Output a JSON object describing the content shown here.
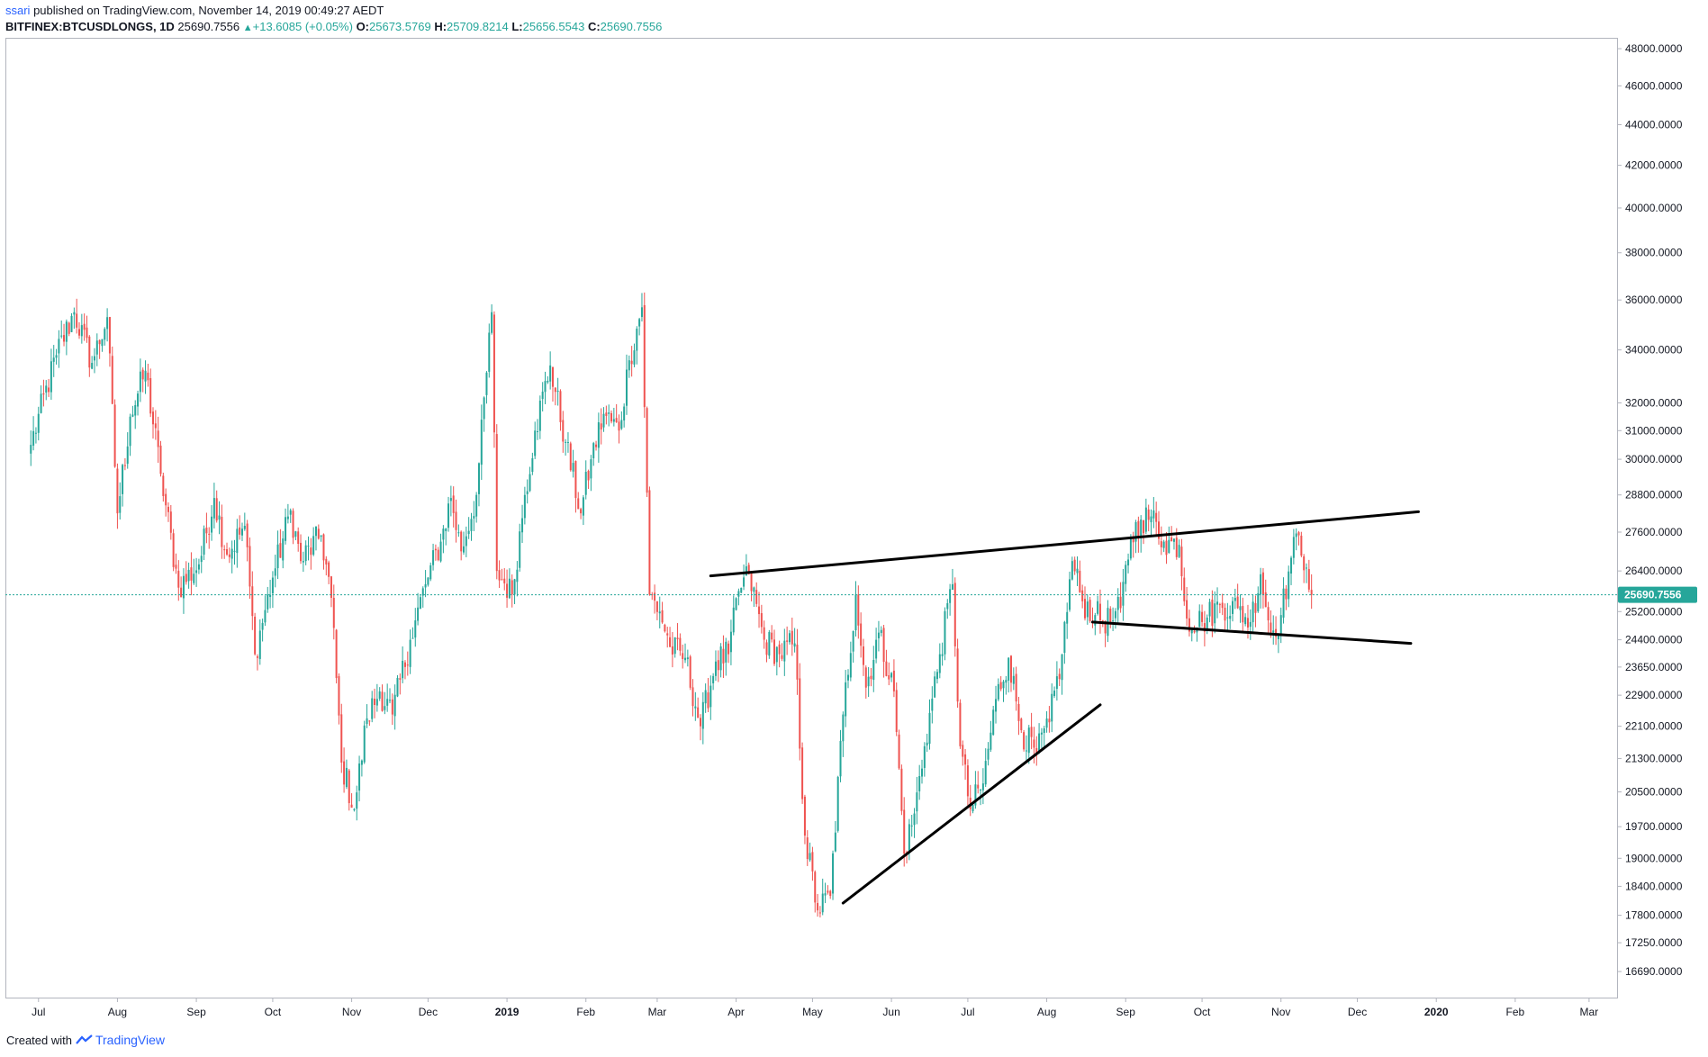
{
  "header": {
    "author": "ssari",
    "published_text": " published on TradingView.com, November 14, 2019 00:49:27 AEDT",
    "symbol": "BITFINEX:BTCUSDLONGS, 1D",
    "last": "25690.7556",
    "change": "+13.6085 (+0.05%)",
    "o_label": "O:",
    "o_value": "25673.5769",
    "h_label": "H:",
    "h_value": "25709.8214",
    "l_label": "L:",
    "l_value": "25656.5543",
    "c_label": "C:",
    "c_value": "25690.7556"
  },
  "footer": {
    "created_with": "Created with",
    "brand": "TradingView"
  },
  "colors": {
    "up": "#26a69a",
    "down": "#ef5350",
    "trendline": "#000000",
    "last_price_label": "#26a69a",
    "axis_text": "#131722"
  },
  "chart_data": {
    "type": "candlestick",
    "symbol": "BITFINEX:BTCUSDLONGS",
    "interval": "1D",
    "y_scale": "log",
    "ylim": [
      16200,
      48600
    ],
    "y_ticks": [
      "48000.0000",
      "46000.0000",
      "44000.0000",
      "42000.0000",
      "40000.0000",
      "38000.0000",
      "36000.0000",
      "34000.0000",
      "32000.0000",
      "31000.0000",
      "30000.0000",
      "28800.0000",
      "27600.0000",
      "26400.0000",
      "25200.0000",
      "24400.0000",
      "23650.0000",
      "22900.0000",
      "22100.0000",
      "21300.0000",
      "20500.0000",
      "19700.0000",
      "19000.0000",
      "18400.0000",
      "17800.0000",
      "17250.0000",
      "16690.0000"
    ],
    "x_ticks": [
      "Jul",
      "Aug",
      "Sep",
      "Oct",
      "Nov",
      "Dec",
      "2019",
      "Feb",
      "Mar",
      "Apr",
      "May",
      "Jun",
      "Jul",
      "Aug",
      "Sep",
      "Oct",
      "Nov",
      "Dec",
      "2020",
      "Feb",
      "Mar"
    ],
    "bold_x_ticks": [
      "2019",
      "2020"
    ],
    "last_price": 25690.7556,
    "last_price_label": "25690.7556",
    "price_path": [
      {
        "date": "2018-06-28",
        "close": 30500
      },
      {
        "date": "2018-07-08",
        "close": 33800
      },
      {
        "date": "2018-07-15",
        "close": 35500
      },
      {
        "date": "2018-07-22",
        "close": 33500
      },
      {
        "date": "2018-07-28",
        "close": 35300
      },
      {
        "date": "2018-08-01",
        "close": 28200
      },
      {
        "date": "2018-08-06",
        "close": 31500
      },
      {
        "date": "2018-08-12",
        "close": 33200
      },
      {
        "date": "2018-08-18",
        "close": 29500
      },
      {
        "date": "2018-08-25",
        "close": 25900
      },
      {
        "date": "2018-09-02",
        "close": 26600
      },
      {
        "date": "2018-09-08",
        "close": 28700
      },
      {
        "date": "2018-09-13",
        "close": 26900
      },
      {
        "date": "2018-09-20",
        "close": 27800
      },
      {
        "date": "2018-09-24",
        "close": 24000
      },
      {
        "date": "2018-10-01",
        "close": 26200
      },
      {
        "date": "2018-10-08",
        "close": 28300
      },
      {
        "date": "2018-10-12",
        "close": 26700
      },
      {
        "date": "2018-10-20",
        "close": 27500
      },
      {
        "date": "2018-10-24",
        "close": 25600
      },
      {
        "date": "2018-10-28",
        "close": 21200
      },
      {
        "date": "2018-11-02",
        "close": 20100
      },
      {
        "date": "2018-11-07",
        "close": 22300
      },
      {
        "date": "2018-11-12",
        "close": 23000
      },
      {
        "date": "2018-11-17",
        "close": 22400
      },
      {
        "date": "2018-11-24",
        "close": 24400
      },
      {
        "date": "2018-11-30",
        "close": 26000
      },
      {
        "date": "2018-12-06",
        "close": 27300
      },
      {
        "date": "2018-12-10",
        "close": 28700
      },
      {
        "date": "2018-12-14",
        "close": 27000
      },
      {
        "date": "2018-12-20",
        "close": 28800
      },
      {
        "date": "2018-12-26",
        "close": 35500
      },
      {
        "date": "2018-12-28",
        "close": 26400
      },
      {
        "date": "2019-01-03",
        "close": 25700
      },
      {
        "date": "2019-01-08",
        "close": 28800
      },
      {
        "date": "2019-01-12",
        "close": 31000
      },
      {
        "date": "2019-01-18",
        "close": 33400
      },
      {
        "date": "2019-01-24",
        "close": 30600
      },
      {
        "date": "2019-01-30",
        "close": 28200
      },
      {
        "date": "2019-02-03",
        "close": 30000
      },
      {
        "date": "2019-02-08",
        "close": 31600
      },
      {
        "date": "2019-02-14",
        "close": 31000
      },
      {
        "date": "2019-02-18",
        "close": 33600
      },
      {
        "date": "2019-02-23",
        "close": 35700
      },
      {
        "date": "2019-02-26",
        "close": 25700
      },
      {
        "date": "2019-03-02",
        "close": 25200
      },
      {
        "date": "2019-03-06",
        "close": 24200
      },
      {
        "date": "2019-03-12",
        "close": 23900
      },
      {
        "date": "2019-03-18",
        "close": 22100
      },
      {
        "date": "2019-03-24",
        "close": 23800
      },
      {
        "date": "2019-03-29",
        "close": 24000
      },
      {
        "date": "2019-04-02",
        "close": 25800
      },
      {
        "date": "2019-04-06",
        "close": 26300
      },
      {
        "date": "2019-04-12",
        "close": 24400
      },
      {
        "date": "2019-04-18",
        "close": 24000
      },
      {
        "date": "2019-04-24",
        "close": 24300
      },
      {
        "date": "2019-04-28",
        "close": 19500
      },
      {
        "date": "2019-05-03",
        "close": 17900
      },
      {
        "date": "2019-05-08",
        "close": 18200
      },
      {
        "date": "2019-05-13",
        "close": 22400
      },
      {
        "date": "2019-05-18",
        "close": 25700
      },
      {
        "date": "2019-05-22",
        "close": 23100
      },
      {
        "date": "2019-05-27",
        "close": 24600
      },
      {
        "date": "2019-06-02",
        "close": 23000
      },
      {
        "date": "2019-06-06",
        "close": 19100
      },
      {
        "date": "2019-06-10",
        "close": 20000
      },
      {
        "date": "2019-06-14",
        "close": 21600
      },
      {
        "date": "2019-06-20",
        "close": 24000
      },
      {
        "date": "2019-06-25",
        "close": 26000
      },
      {
        "date": "2019-06-28",
        "close": 21600
      },
      {
        "date": "2019-07-02",
        "close": 20100
      },
      {
        "date": "2019-07-07",
        "close": 20700
      },
      {
        "date": "2019-07-12",
        "close": 22800
      },
      {
        "date": "2019-07-17",
        "close": 23900
      },
      {
        "date": "2019-07-22",
        "close": 22000
      },
      {
        "date": "2019-07-28",
        "close": 21400
      },
      {
        "date": "2019-08-02",
        "close": 22200
      },
      {
        "date": "2019-08-07",
        "close": 24000
      },
      {
        "date": "2019-08-11",
        "close": 26700
      },
      {
        "date": "2019-08-15",
        "close": 25500
      },
      {
        "date": "2019-08-20",
        "close": 25100
      },
      {
        "date": "2019-08-26",
        "close": 24900
      },
      {
        "date": "2019-08-30",
        "close": 25300
      },
      {
        "date": "2019-09-03",
        "close": 27400
      },
      {
        "date": "2019-09-07",
        "close": 28000
      },
      {
        "date": "2019-09-11",
        "close": 28100
      },
      {
        "date": "2019-09-16",
        "close": 27300
      },
      {
        "date": "2019-09-22",
        "close": 27200
      },
      {
        "date": "2019-09-25",
        "close": 25000
      },
      {
        "date": "2019-10-01",
        "close": 24900
      },
      {
        "date": "2019-10-08",
        "close": 25400
      },
      {
        "date": "2019-10-15",
        "close": 25300
      },
      {
        "date": "2019-10-20",
        "close": 24900
      },
      {
        "date": "2019-10-24",
        "close": 26300
      },
      {
        "date": "2019-10-28",
        "close": 24600
      },
      {
        "date": "2019-11-01",
        "close": 25100
      },
      {
        "date": "2019-11-05",
        "close": 26800
      },
      {
        "date": "2019-11-08",
        "close": 27500
      },
      {
        "date": "2019-11-11",
        "close": 26500
      },
      {
        "date": "2019-11-13",
        "close": 25690.7556
      }
    ],
    "trendlines": [
      {
        "from": {
          "date": "2019-03-22",
          "price": 26250
        },
        "to": {
          "date": "2019-12-25",
          "price": 28250
        }
      },
      {
        "from": {
          "date": "2019-08-19",
          "price": 24900
        },
        "to": {
          "date": "2019-12-22",
          "price": 24300
        }
      },
      {
        "from": {
          "date": "2019-05-13",
          "price": 18050
        },
        "to": {
          "date": "2019-08-22",
          "price": 22650
        }
      }
    ]
  }
}
